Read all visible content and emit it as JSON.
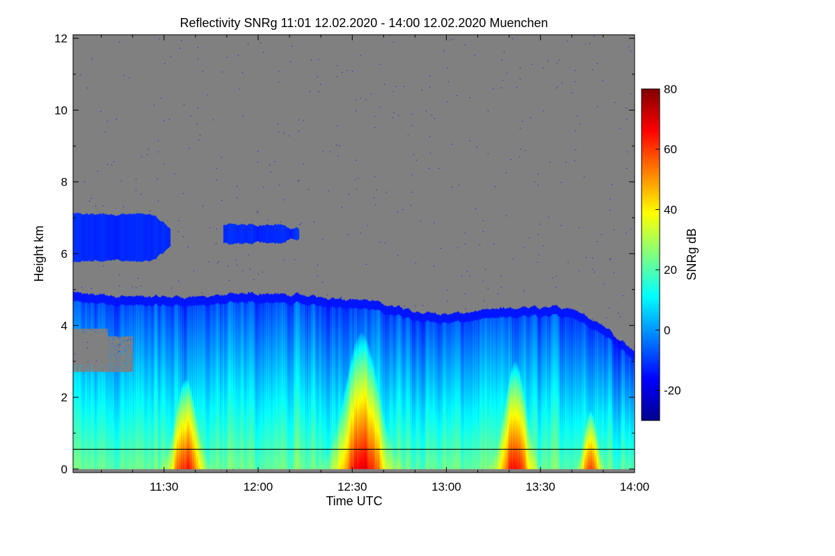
{
  "chart_data": {
    "type": "heatmap",
    "title": "Reflectivity SNRg   11:01 12.02.2020 - 14:00 12.02.2020 Muenchen",
    "xlabel": "Time UTC",
    "ylabel": "Height km",
    "x_range": [
      "11:01",
      "14:00"
    ],
    "xlim_minutes": [
      661,
      840
    ],
    "x_ticks": [
      {
        "label": "11:30",
        "minutes": 690
      },
      {
        "label": "12:00",
        "minutes": 720
      },
      {
        "label": "12:30",
        "minutes": 750
      },
      {
        "label": "13:00",
        "minutes": 780
      },
      {
        "label": "13:30",
        "minutes": 810
      },
      {
        "label": "14:00",
        "minutes": 840
      }
    ],
    "ylim": [
      -0.1,
      12.1
    ],
    "y_ticks": [
      0,
      2,
      4,
      6,
      8,
      10,
      12
    ],
    "background_color": "#808080",
    "reference_line_height_km": 0.55,
    "colorbar": {
      "label": "SNRg dB",
      "range": [
        -30,
        80
      ],
      "ticks": [
        -20,
        0,
        20,
        40,
        60,
        80
      ],
      "colormap": "jet"
    },
    "features": {
      "upper_cloud_band_1": {
        "start_min": 661,
        "end_min": 692,
        "bottom_km": 5.8,
        "top_km": 7.1,
        "snr_db": -12
      },
      "upper_cloud_band_2": {
        "start_min": 709,
        "end_min": 733,
        "bottom_km": 6.3,
        "top_km": 6.8,
        "snr_db": -12
      },
      "main_cloud_top_km": [
        {
          "minutes": 661,
          "top_km": 4.9
        },
        {
          "minutes": 680,
          "top_km": 4.8
        },
        {
          "minutes": 700,
          "top_km": 4.8
        },
        {
          "minutes": 720,
          "top_km": 4.9
        },
        {
          "minutes": 740,
          "top_km": 4.8
        },
        {
          "minutes": 755,
          "top_km": 4.7
        },
        {
          "minutes": 770,
          "top_km": 4.4
        },
        {
          "minutes": 780,
          "top_km": 4.3
        },
        {
          "minutes": 790,
          "top_km": 4.4
        },
        {
          "minutes": 805,
          "top_km": 4.5
        },
        {
          "minutes": 820,
          "top_km": 4.5
        },
        {
          "minutes": 830,
          "top_km": 4.0
        },
        {
          "minutes": 840,
          "top_km": 3.3
        }
      ],
      "precipitation_cores": [
        {
          "center_min": 697,
          "width_min": 10,
          "top_km": 2.5,
          "peak_snr_db": 62
        },
        {
          "center_min": 753,
          "width_min": 16,
          "top_km": 3.8,
          "peak_snr_db": 65
        },
        {
          "center_min": 802,
          "width_min": 10,
          "top_km": 3.0,
          "peak_snr_db": 63
        },
        {
          "center_min": 826,
          "width_min": 6,
          "top_km": 1.6,
          "peak_snr_db": 58
        }
      ]
    }
  }
}
